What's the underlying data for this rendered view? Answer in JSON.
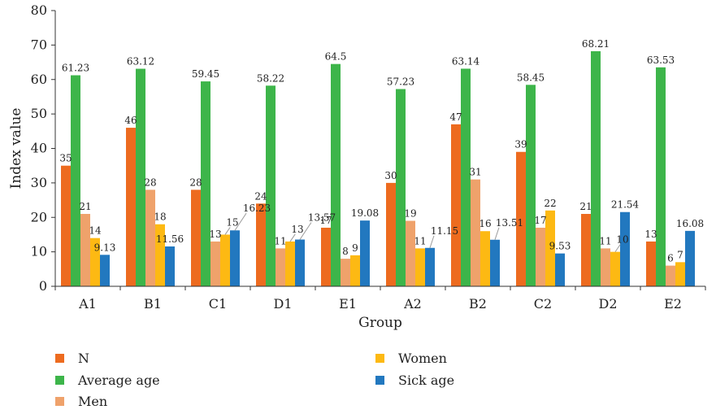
{
  "chart_data": {
    "type": "bar",
    "xlabel": "Group",
    "ylabel": "Index value",
    "ylim": [
      0,
      80
    ],
    "yticks": [
      0,
      10,
      20,
      30,
      40,
      50,
      60,
      70,
      80
    ],
    "categories": [
      "A1",
      "B1",
      "C1",
      "D1",
      "E1",
      "A2",
      "B2",
      "C2",
      "D2",
      "E2"
    ],
    "series": [
      {
        "name": "N",
        "color": "#ED6B1F",
        "values": [
          35,
          46,
          28,
          24,
          17,
          30,
          47,
          39,
          21,
          13
        ],
        "labels": [
          "35",
          "46",
          "28",
          "24",
          "17",
          "30",
          "47",
          "39",
          "21",
          "13"
        ]
      },
      {
        "name": "Average age",
        "color": "#3DB54A",
        "values": [
          61.23,
          63.12,
          59.45,
          58.22,
          64.5,
          57.23,
          63.14,
          58.45,
          68.21,
          63.53
        ],
        "labels": [
          "61.23",
          "63.12",
          "59.45",
          "58.22",
          "64.5",
          "57.23",
          "63.14",
          "58.45",
          "68.21",
          "63.53"
        ]
      },
      {
        "name": "Men",
        "color": "#EFA26B",
        "values": [
          21,
          28,
          13,
          11,
          8,
          19,
          31,
          17,
          11,
          6
        ],
        "labels": [
          "21",
          "28",
          "13",
          "11",
          "8",
          "19",
          "31",
          "17",
          "11",
          "6"
        ]
      },
      {
        "name": "Women",
        "color": "#FDB913",
        "values": [
          14,
          18,
          15,
          13,
          9,
          11,
          16,
          22,
          10,
          7
        ],
        "labels": [
          "14",
          "18",
          "15",
          "13",
          "9",
          "11",
          "16",
          "22",
          "10",
          "7"
        ]
      },
      {
        "name": "Sick age",
        "color": "#2278BF",
        "values": [
          9.13,
          11.56,
          16.23,
          13.57,
          19.08,
          11.15,
          13.51,
          9.53,
          21.54,
          16.08
        ],
        "labels": [
          "9.13",
          "11.56",
          "16.23",
          "13.57",
          "19.08",
          "11.15",
          "13.51",
          "9.53",
          "21.54",
          "16.08"
        ]
      }
    ],
    "legend": {
      "placement": "bottom",
      "items": [
        "N",
        "Average age",
        "Men",
        "Women",
        "Sick age"
      ]
    },
    "grid": false
  }
}
